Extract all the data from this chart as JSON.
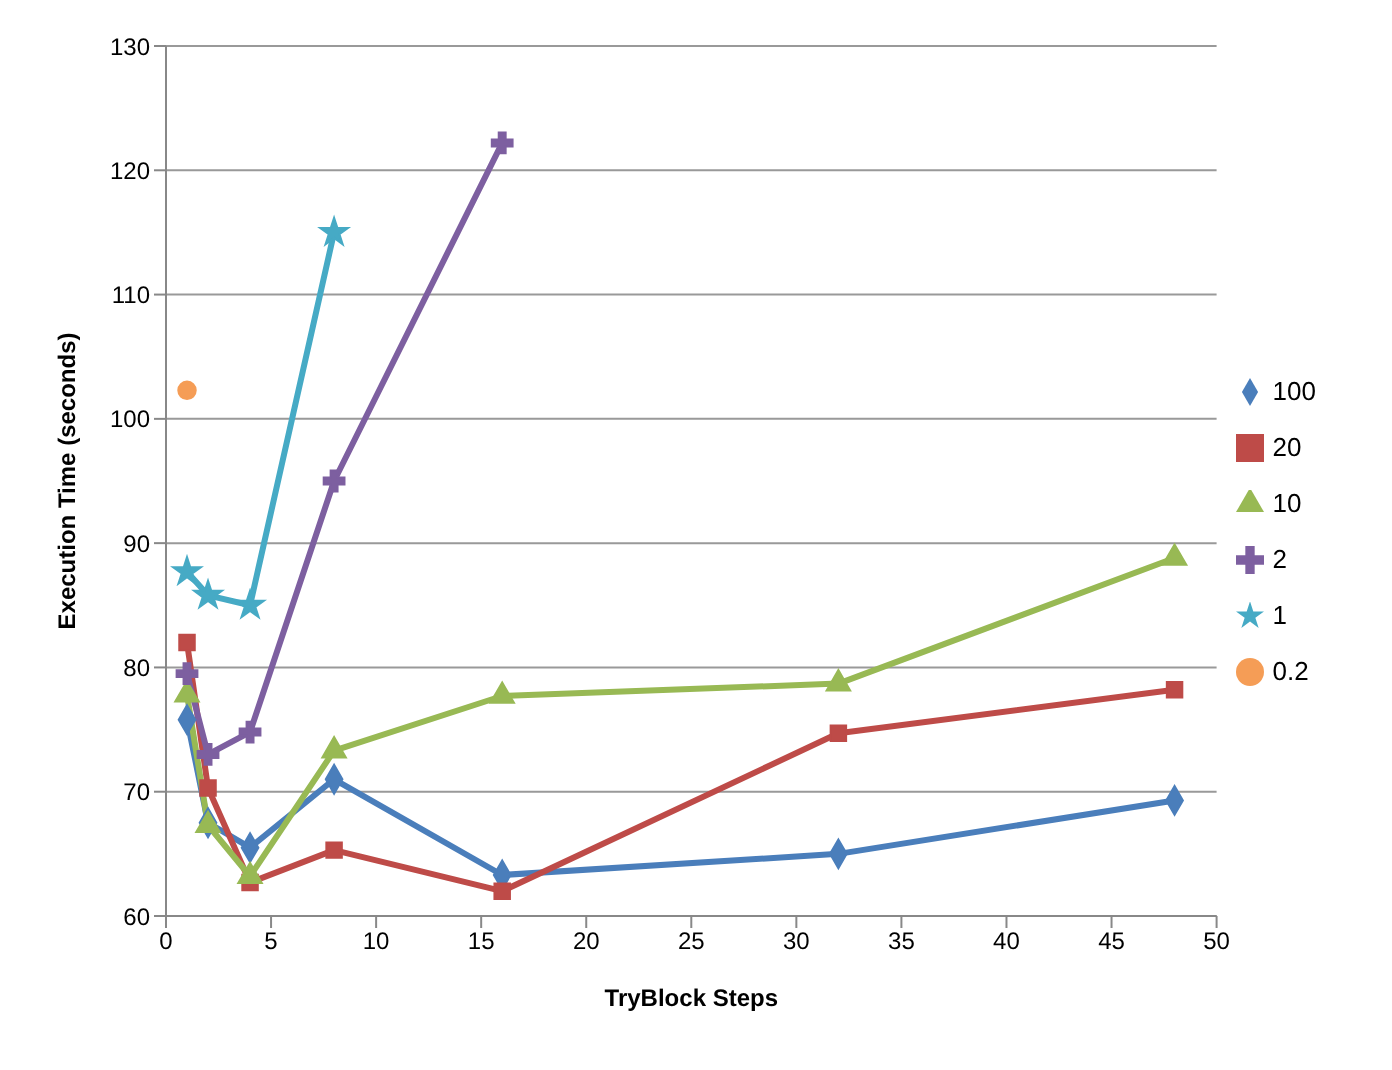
{
  "chart_data": {
    "type": "line",
    "xlabel": "TryBlock Steps",
    "ylabel": "Execution Time (seconds)",
    "x": [
      1,
      2,
      4,
      8,
      16,
      32,
      48
    ],
    "series": [
      {
        "name": "100",
        "color": "#4a7ebb",
        "marker": "diamond",
        "values": [
          75.8,
          67.5,
          65.5,
          71,
          63.3,
          65,
          69.3
        ]
      },
      {
        "name": "20",
        "color": "#be4b48",
        "marker": "square",
        "values": [
          82,
          70.3,
          62.7,
          65.3,
          62,
          74.7,
          78.2
        ]
      },
      {
        "name": "10",
        "color": "#98b954",
        "marker": "triangle",
        "values": [
          77.8,
          67.3,
          63.2,
          73.3,
          77.7,
          78.7,
          88.8
        ]
      },
      {
        "name": "2",
        "color": "#7d5fa0",
        "marker": "cross",
        "values": [
          79.5,
          73,
          74.8,
          95,
          122.2,
          null,
          null
        ]
      },
      {
        "name": "1",
        "color": "#46aac5",
        "marker": "star",
        "values": [
          87.7,
          85.8,
          85,
          115,
          null,
          null,
          null
        ]
      },
      {
        "name": "0.2",
        "color": "#f59d56",
        "marker": "circle",
        "values": [
          102.3,
          null,
          null,
          null,
          null,
          null,
          null
        ]
      }
    ],
    "xlim": [
      0,
      50
    ],
    "xticks": [
      0,
      5,
      10,
      15,
      20,
      25,
      30,
      35,
      40,
      45,
      50
    ],
    "ylim": [
      60,
      130
    ],
    "yticks": [
      60,
      70,
      80,
      90,
      100,
      110,
      120,
      130
    ],
    "grid": "y",
    "legend": "right",
    "line_style": "solid"
  }
}
